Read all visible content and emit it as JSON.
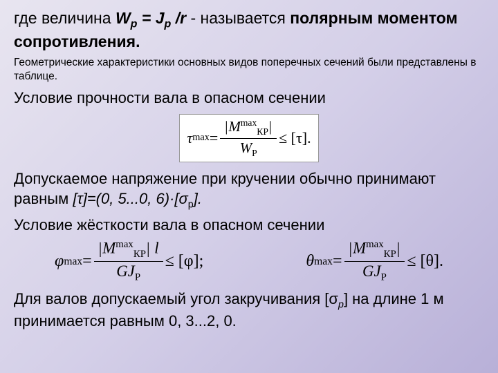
{
  "title": {
    "pre": "где величина ",
    "eq1": "W",
    "eq1sub": "p",
    "eq2": " = J",
    "eq2sub": "p",
    "eq3": " /r",
    "post1": " - называется ",
    "bold1": "полярным моментом сопротивления",
    "dot": "."
  },
  "small": "Геометрические характеристики основных видов поперечных сечений были представлены в таблице.",
  "cond_strength": "Условие прочности вала в опасном сечении",
  "formula1": {
    "lhs": "τ",
    "lhs_sub": "max",
    "num_abs_l": "|",
    "num_M": "M",
    "num_sup": "max",
    "num_sub": "КР",
    "num_abs_r": "|",
    "den_W": "W",
    "den_sub": "P",
    "rhs_le": " ≤ [τ].",
    "eq": " = "
  },
  "allowable": {
    "t1": "Допускаемое напряжение при кручении обычно принимают равным ",
    "em": "[τ]=(0, 5...0, 6)·[σ",
    "emsub": "р",
    "em2": "].",
    "t2": "Условие жёсткости вала в опасном сечении"
  },
  "formula2": {
    "lhs": "φ",
    "lhs_sub": "max",
    "eq": " = ",
    "num_abs_l": "|",
    "num_M": "M",
    "num_sup": "max",
    "num_sub": "КР",
    "num_abs_r": "|",
    "num_l": " l",
    "den": "GJ",
    "den_sub": "P",
    "rhs": " ≤ [φ];"
  },
  "formula3": {
    "lhs": "θ",
    "lhs_sub": "max",
    "eq": " = ",
    "num_abs_l": "|",
    "num_M": "M",
    "num_sup": "max",
    "num_sub": "КР",
    "num_abs_r": "|",
    "den": "GJ",
    "den_sub": "P",
    "rhs": " ≤ [θ]."
  },
  "closing": {
    "t1": "Для валов допускаемый угол закручивания [σ",
    "sub": "р",
    "t2": "] на длине 1 м принимается равным 0, 3...2, 0."
  }
}
